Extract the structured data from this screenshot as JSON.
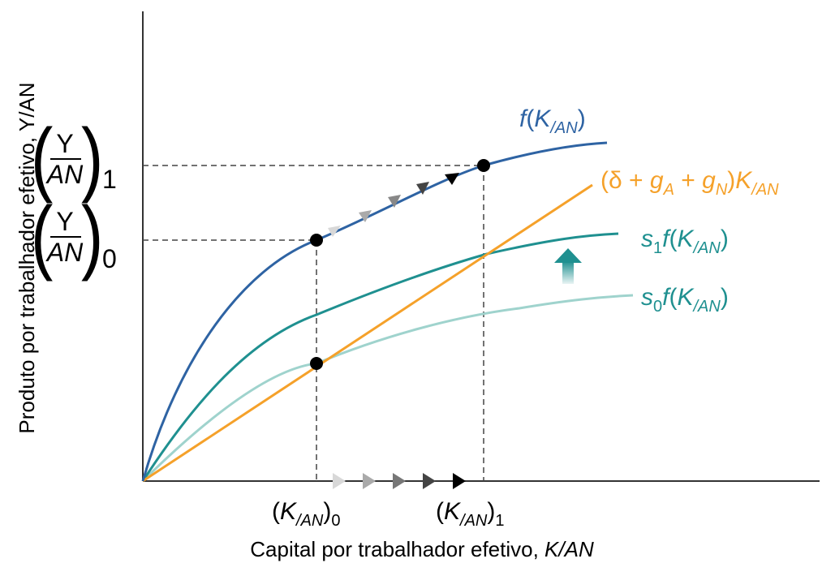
{
  "axes": {
    "x_label_prefix": "Capital por trabalhador efetivo, ",
    "x_label_var": "K/AN",
    "y_label": "Produto por trabalhador efetivo, Y/AN"
  },
  "curves": {
    "production": {
      "fn": "f",
      "arg_main": "K",
      "arg_sub": "/AN",
      "color": "#2e63a3"
    },
    "investment_line": {
      "prefix": "(δ + ",
      "gA_main": "g",
      "gA_sub": "A",
      "plus": " + ",
      "gN_main": "g",
      "gN_sub": "N",
      "close": ")",
      "arg_main": "K",
      "arg_sub": "/AN",
      "color": "#f5a12a"
    },
    "saving_1": {
      "s_main": "s",
      "s_sub": "1",
      "fn": "f",
      "arg_main": "K",
      "arg_sub": "/AN",
      "color": "#1f9090"
    },
    "saving_0": {
      "s_main": "s",
      "s_sub": "0",
      "fn": "f",
      "arg_main": "K",
      "arg_sub": "/AN",
      "color": "#99d2cc"
    }
  },
  "y_ticks": {
    "y1": {
      "numerator": "Y",
      "denominator": "AN",
      "sub": "1"
    },
    "y0": {
      "numerator": "Y",
      "denominator": "AN",
      "sub": "0"
    }
  },
  "x_ticks": {
    "k0": {
      "open": "(",
      "main": "K",
      "sub_var": "/AN",
      "close": ")",
      "sub": "0"
    },
    "k1": {
      "open": "(",
      "main": "K",
      "sub_var": "/AN",
      "close": ")",
      "sub": "1"
    }
  },
  "shift_arrow_color": "#1f9090"
}
